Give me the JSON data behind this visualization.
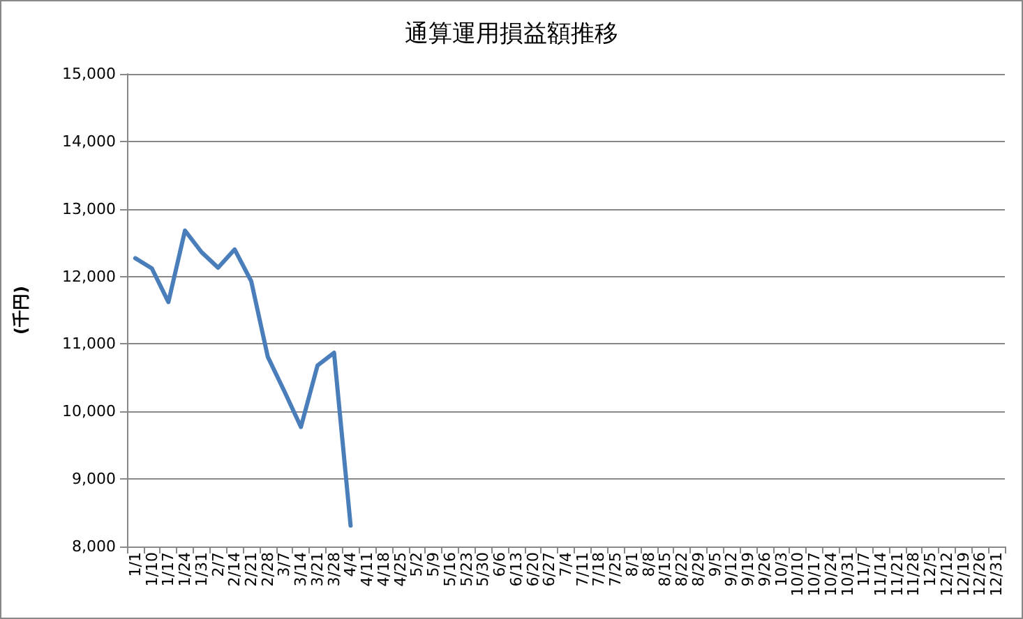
{
  "chart_data": {
    "type": "line",
    "title": "通算運用損益額推移",
    "ylabel": "(千円)",
    "categories": [
      "1/1",
      "1/10",
      "1/17",
      "1/24",
      "1/31",
      "2/7",
      "2/14",
      "2/21",
      "2/28",
      "3/7",
      "3/14",
      "3/21",
      "3/28",
      "4/4",
      "4/11",
      "4/18",
      "4/25",
      "5/2",
      "5/9",
      "5/16",
      "5/23",
      "5/30",
      "6/6",
      "6/13",
      "6/20",
      "6/27",
      "7/4",
      "7/11",
      "7/18",
      "7/25",
      "8/1",
      "8/8",
      "8/15",
      "8/22",
      "8/29",
      "9/5",
      "9/12",
      "9/19",
      "9/26",
      "10/3",
      "10/10",
      "10/17",
      "10/24",
      "10/31",
      "11/7",
      "11/14",
      "11/21",
      "11/28",
      "12/5",
      "12/12",
      "12/19",
      "12/26",
      "12/31"
    ],
    "series": [
      {
        "color": "#4a7ebb",
        "values": [
          12270,
          12120,
          11620,
          12680,
          12360,
          12130,
          12400,
          11930,
          10810,
          10300,
          9770,
          10680,
          10870,
          8310,
          null,
          null,
          null,
          null,
          null,
          null,
          null,
          null,
          null,
          null,
          null,
          null,
          null,
          null,
          null,
          null,
          null,
          null,
          null,
          null,
          null,
          null,
          null,
          null,
          null,
          null,
          null,
          null,
          null,
          null,
          null,
          null,
          null,
          null,
          null,
          null,
          null,
          null,
          null
        ]
      }
    ],
    "ylim": [
      8000,
      15000
    ],
    "yticks": [
      {
        "value": 8000,
        "label": "8,000"
      },
      {
        "value": 9000,
        "label": "9,000"
      },
      {
        "value": 10000,
        "label": "10,000"
      },
      {
        "value": 11000,
        "label": "11,000"
      },
      {
        "value": 12000,
        "label": "12,000"
      },
      {
        "value": 13000,
        "label": "13,000"
      },
      {
        "value": 14000,
        "label": "14,000"
      },
      {
        "value": 15000,
        "label": "15,000"
      }
    ],
    "grid": "y",
    "marker": "none",
    "line_style": "solid"
  }
}
